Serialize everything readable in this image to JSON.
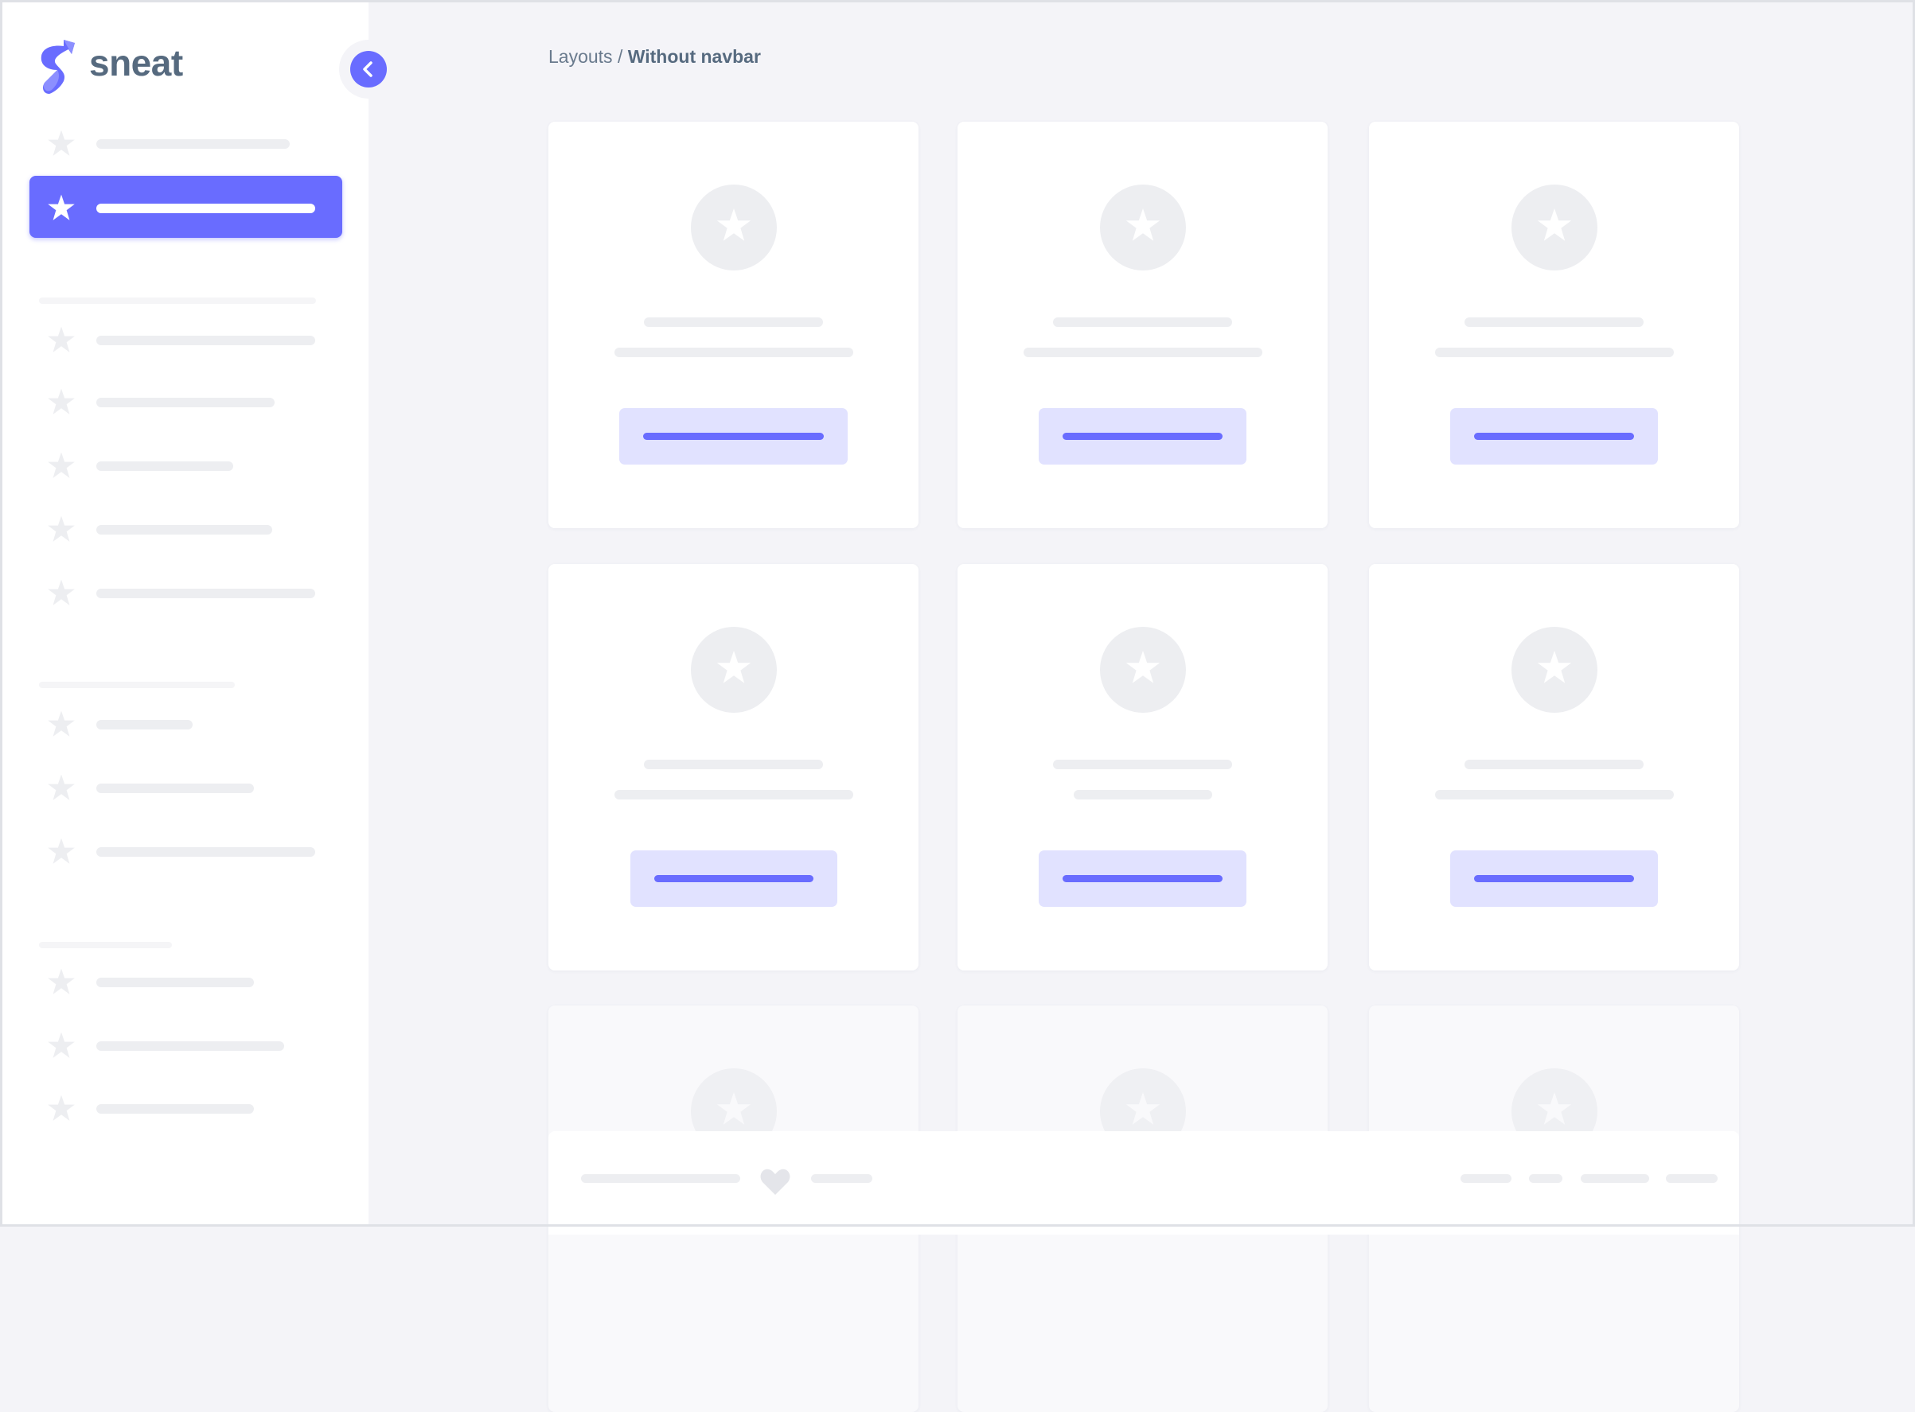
{
  "app": {
    "brand": "sneat",
    "accent": "#696cff"
  },
  "sidebar": {
    "toggle_icon": "chevron-left-icon",
    "item_icon": "star-icon",
    "active_index": 1
  },
  "breadcrumb": {
    "parent": "Layouts",
    "separator": "/",
    "current": "Without navbar"
  },
  "cards": {
    "icon": "star-icon",
    "count": 9
  },
  "footer": {
    "icon": "heart-icon"
  }
}
